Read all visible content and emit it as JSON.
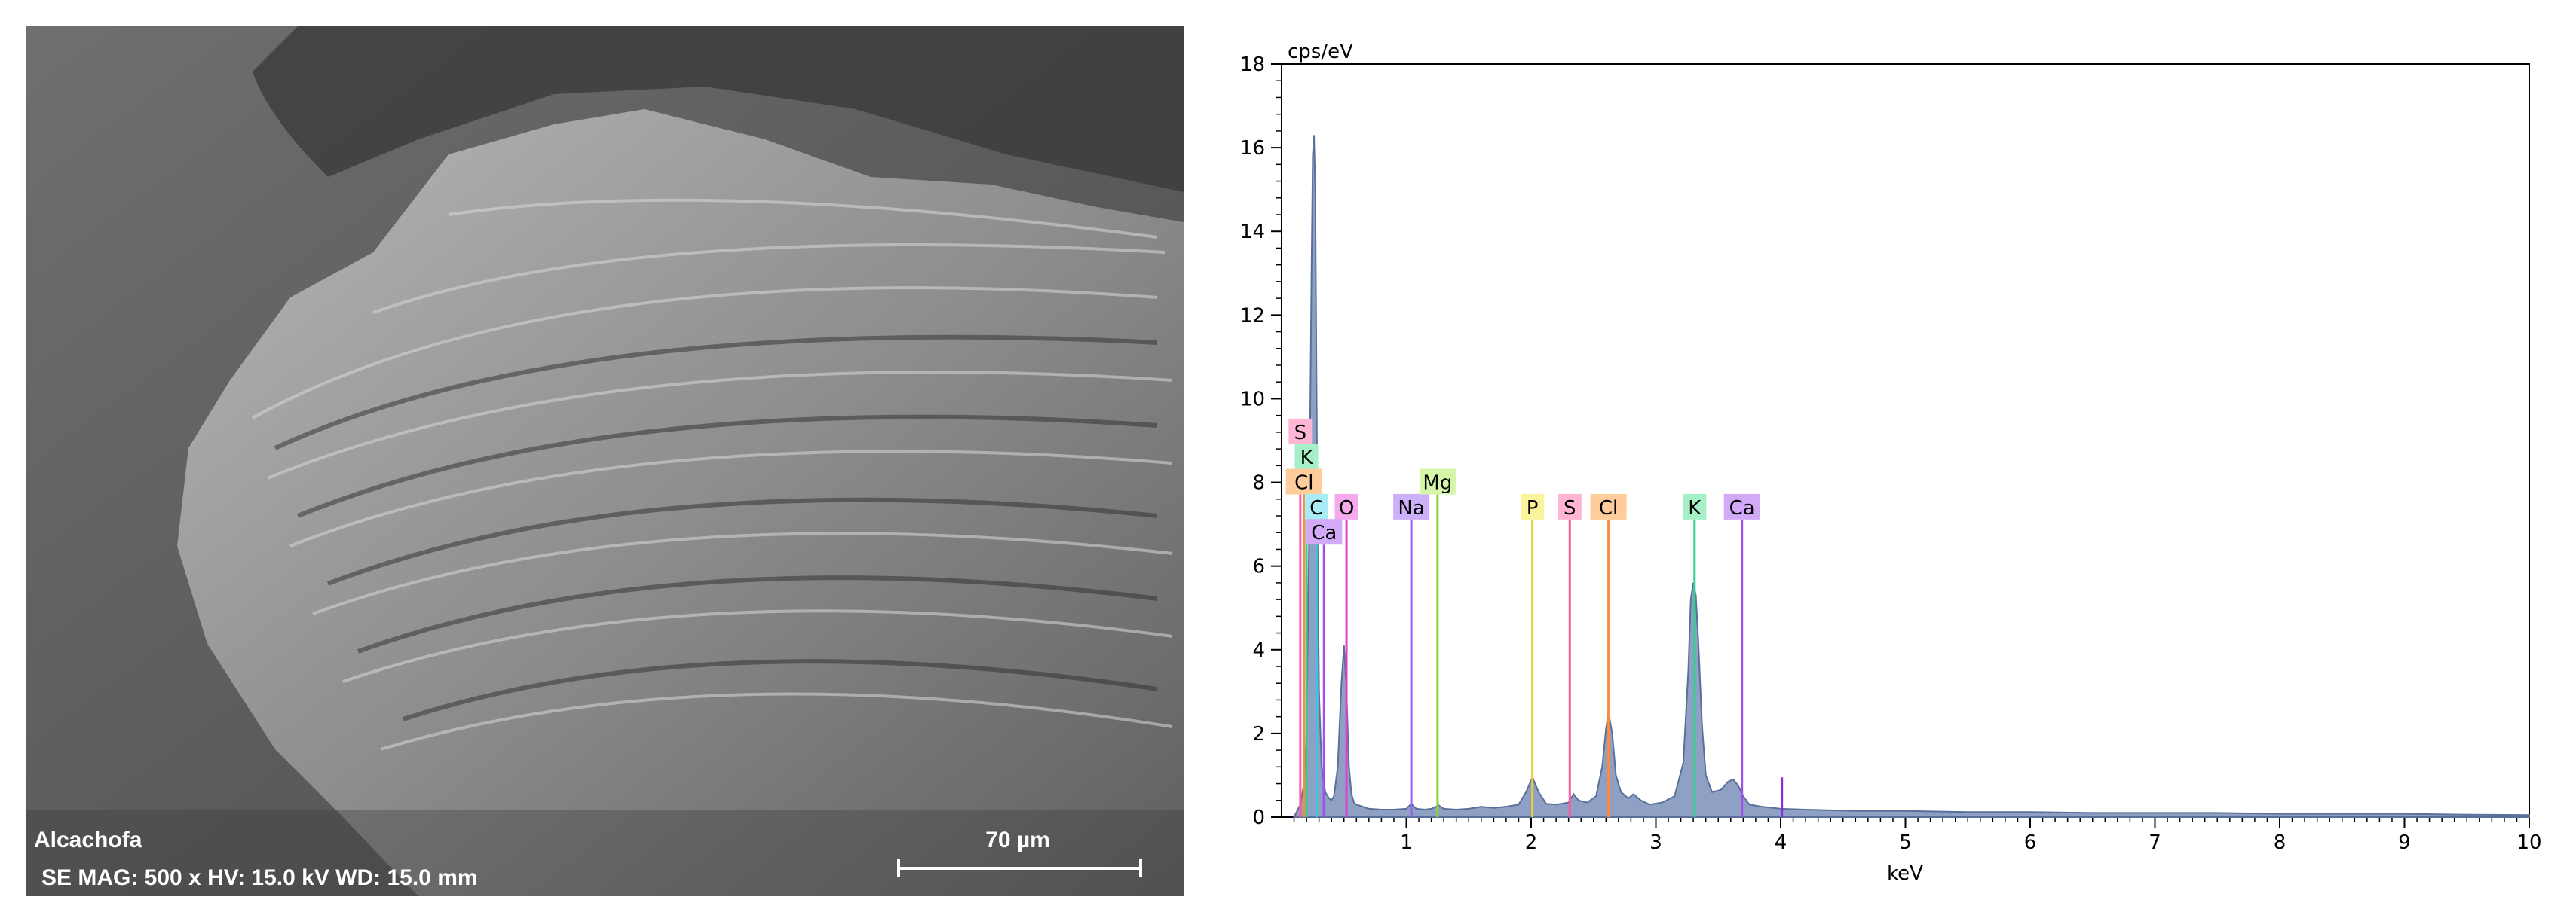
{
  "sem": {
    "sample_name": "Alcachofa",
    "info_line": "SE  MAG: 500 x   HV: 15.0 kV   WD: 15.0 mm",
    "scale_bar_label": "70 µm"
  },
  "chart_data": {
    "type": "line",
    "title": "",
    "xlabel": "keV",
    "ylabel": "cps/eV",
    "xlim": [
      0,
      10
    ],
    "ylim": [
      0,
      18
    ],
    "x_ticks": [
      "1",
      "2",
      "3",
      "4",
      "5",
      "6",
      "7",
      "8",
      "9",
      "10"
    ],
    "y_ticks": [
      "0",
      "2",
      "4",
      "6",
      "8",
      "10",
      "12",
      "14",
      "16",
      "18"
    ],
    "grid": false,
    "spectrum": {
      "x": [
        0.1,
        0.15,
        0.18,
        0.2,
        0.22,
        0.24,
        0.25,
        0.26,
        0.27,
        0.28,
        0.29,
        0.3,
        0.32,
        0.35,
        0.38,
        0.4,
        0.42,
        0.45,
        0.48,
        0.5,
        0.52,
        0.54,
        0.56,
        0.58,
        0.6,
        0.65,
        0.7,
        0.8,
        0.9,
        1.0,
        1.04,
        1.08,
        1.15,
        1.2,
        1.26,
        1.3,
        1.4,
        1.5,
        1.6,
        1.7,
        1.8,
        1.9,
        1.96,
        2.01,
        2.06,
        2.12,
        2.2,
        2.3,
        2.34,
        2.38,
        2.45,
        2.52,
        2.57,
        2.6,
        2.62,
        2.65,
        2.68,
        2.72,
        2.78,
        2.82,
        2.88,
        2.95,
        3.05,
        3.15,
        3.22,
        3.26,
        3.28,
        3.3,
        3.32,
        3.34,
        3.37,
        3.4,
        3.45,
        3.52,
        3.58,
        3.62,
        3.66,
        3.7,
        3.75,
        3.85,
        4.0,
        4.2,
        4.6,
        5.0,
        5.5,
        6.0,
        6.5,
        7.0,
        7.5,
        8.0,
        8.5,
        9.0,
        9.5,
        10.0
      ],
      "y": [
        0.0,
        0.3,
        0.8,
        2.0,
        6.5,
        13.0,
        15.8,
        16.3,
        15.0,
        10.5,
        6.0,
        3.0,
        1.2,
        0.6,
        0.45,
        0.4,
        0.5,
        1.2,
        3.2,
        4.1,
        3.0,
        1.2,
        0.55,
        0.35,
        0.3,
        0.25,
        0.2,
        0.18,
        0.18,
        0.2,
        0.32,
        0.2,
        0.18,
        0.2,
        0.28,
        0.2,
        0.18,
        0.2,
        0.25,
        0.22,
        0.25,
        0.3,
        0.6,
        0.95,
        0.6,
        0.32,
        0.3,
        0.35,
        0.55,
        0.4,
        0.35,
        0.5,
        1.2,
        2.1,
        2.5,
        2.0,
        1.0,
        0.6,
        0.45,
        0.55,
        0.4,
        0.3,
        0.35,
        0.5,
        1.3,
        3.5,
        5.2,
        5.6,
        5.3,
        4.2,
        2.2,
        1.0,
        0.6,
        0.65,
        0.85,
        0.9,
        0.75,
        0.5,
        0.3,
        0.25,
        0.2,
        0.18,
        0.15,
        0.15,
        0.12,
        0.12,
        0.1,
        0.1,
        0.1,
        0.08,
        0.08,
        0.08,
        0.06,
        0.05
      ]
    },
    "element_markers": [
      {
        "label": "S",
        "x": 0.15,
        "label_y": 9.2,
        "color": "#ff5aa0",
        "fill": "#ffb6d5"
      },
      {
        "label": "K",
        "x": 0.2,
        "label_y": 8.6,
        "color": "#2fd28a",
        "fill": "#a6f0c8"
      },
      {
        "label": "Cl",
        "x": 0.18,
        "label_y": 8.0,
        "color": "#ff8a3d",
        "fill": "#ffcc9c"
      },
      {
        "label": "C",
        "x": 0.28,
        "label_y": 7.4,
        "color": "#33c9e0",
        "fill": "#a8ecf6"
      },
      {
        "label": "O",
        "x": 0.52,
        "label_y": 7.4,
        "color": "#e040d0",
        "fill": "#f5aaee"
      },
      {
        "label": "Ca",
        "x": 0.34,
        "label_y": 6.8,
        "color": "#a050f0",
        "fill": "#d2aaf8"
      },
      {
        "label": "Na",
        "x": 1.04,
        "label_y": 7.4,
        "color": "#9a5cf0",
        "fill": "#cdb0fa"
      },
      {
        "label": "Mg",
        "x": 1.25,
        "label_y": 8.0,
        "color": "#8ad638",
        "fill": "#d6f5a8"
      },
      {
        "label": "P",
        "x": 2.01,
        "label_y": 7.4,
        "color": "#e8d030",
        "fill": "#fbf29c"
      },
      {
        "label": "S",
        "x": 2.31,
        "label_y": 7.4,
        "color": "#ff5aa0",
        "fill": "#ffb6d5"
      },
      {
        "label": "Cl",
        "x": 2.62,
        "label_y": 7.4,
        "color": "#ff8a3d",
        "fill": "#ffcc9c"
      },
      {
        "label": "K",
        "x": 3.31,
        "label_y": 7.4,
        "color": "#2fd28a",
        "fill": "#a6f0c8"
      },
      {
        "label": "Ca",
        "x": 3.69,
        "label_y": 7.4,
        "color": "#a050f0",
        "fill": "#d2aaf8"
      }
    ],
    "extra_lines": [
      {
        "x": 0.34,
        "top": 1.8,
        "color": "#8a2be2"
      },
      {
        "x": 4.01,
        "top": 0.95,
        "color": "#8a2be2"
      }
    ],
    "spectrum_color": "#7a8fb8"
  }
}
